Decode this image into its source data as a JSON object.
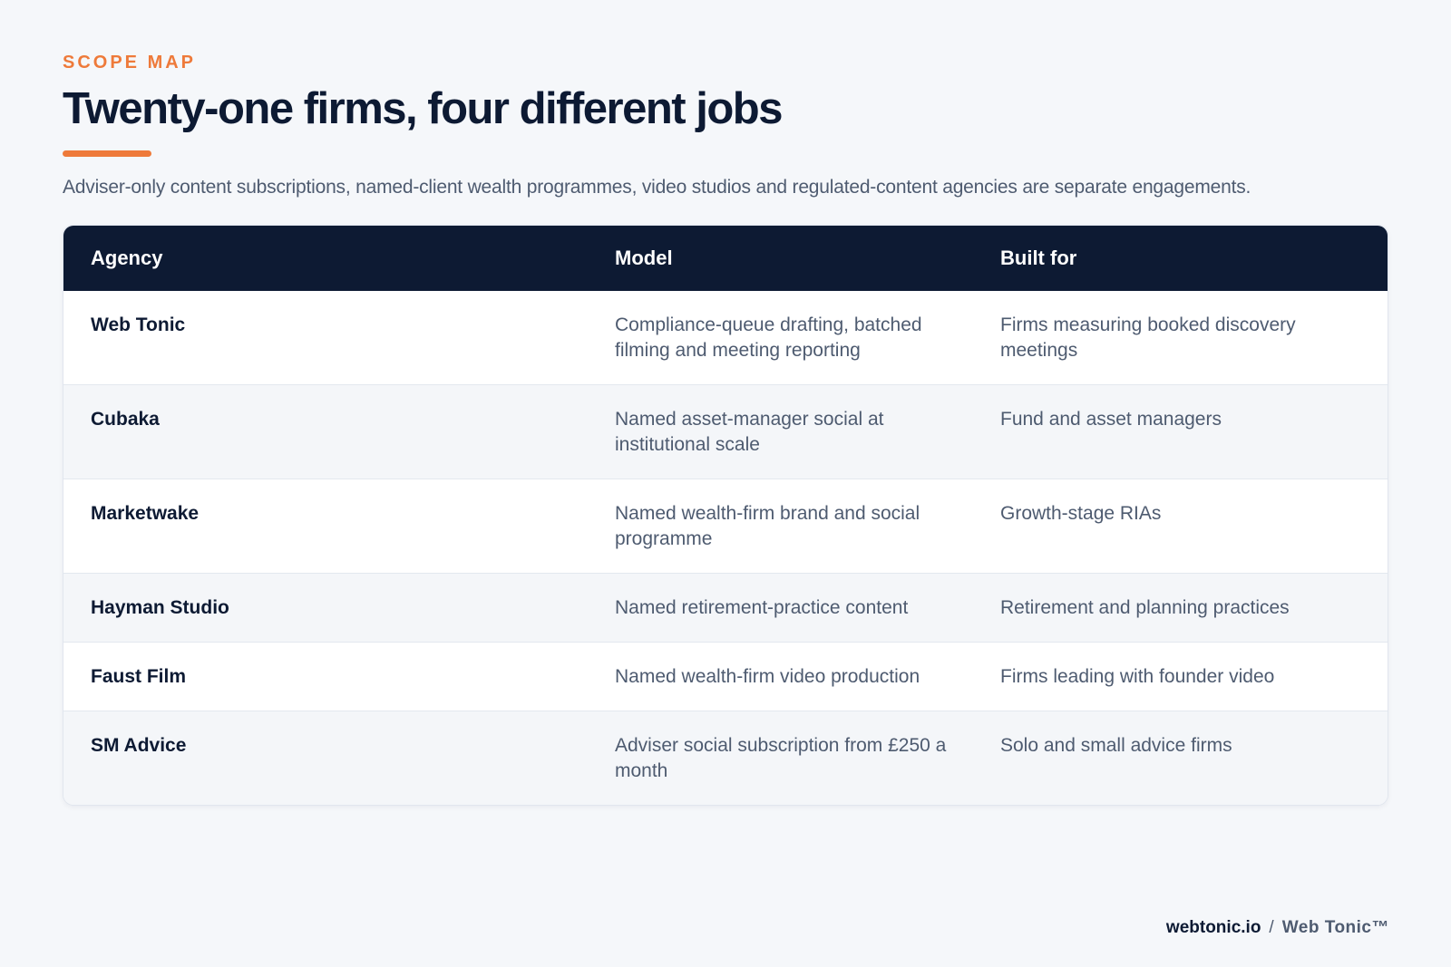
{
  "header": {
    "eyebrow": "SCOPE MAP",
    "title": "Twenty-one firms, four different jobs",
    "subtitle": "Adviser-only content subscriptions, named-client wealth programmes, video studios and regulated-content agencies are separate engagements."
  },
  "table": {
    "columns": [
      "Agency",
      "Model",
      "Built for"
    ],
    "rows": [
      {
        "agency": "Web Tonic",
        "model": "Compliance-queue drafting, batched filming and meeting reporting",
        "built_for": "Firms measuring booked discovery meetings"
      },
      {
        "agency": "Cubaka",
        "model": "Named asset-manager social at institutional scale",
        "built_for": "Fund and asset managers"
      },
      {
        "agency": "Marketwake",
        "model": "Named wealth-firm brand and social programme",
        "built_for": "Growth-stage RIAs"
      },
      {
        "agency": "Hayman Studio",
        "model": "Named retirement-practice content",
        "built_for": "Retirement and planning practices"
      },
      {
        "agency": "Faust Film",
        "model": "Named wealth-firm video production",
        "built_for": "Firms leading with founder video"
      },
      {
        "agency": "SM Advice",
        "model": "Adviser social subscription from £250 a month",
        "built_for": "Solo and small advice firms"
      }
    ]
  },
  "footer": {
    "domain": "webtonic.io",
    "separator": "/",
    "brand": "Web Tonic™"
  },
  "colors": {
    "accent": "#ee7a3a",
    "navy": "#0d1a33",
    "body_text": "#4e5b70",
    "background": "#f5f7fa"
  }
}
